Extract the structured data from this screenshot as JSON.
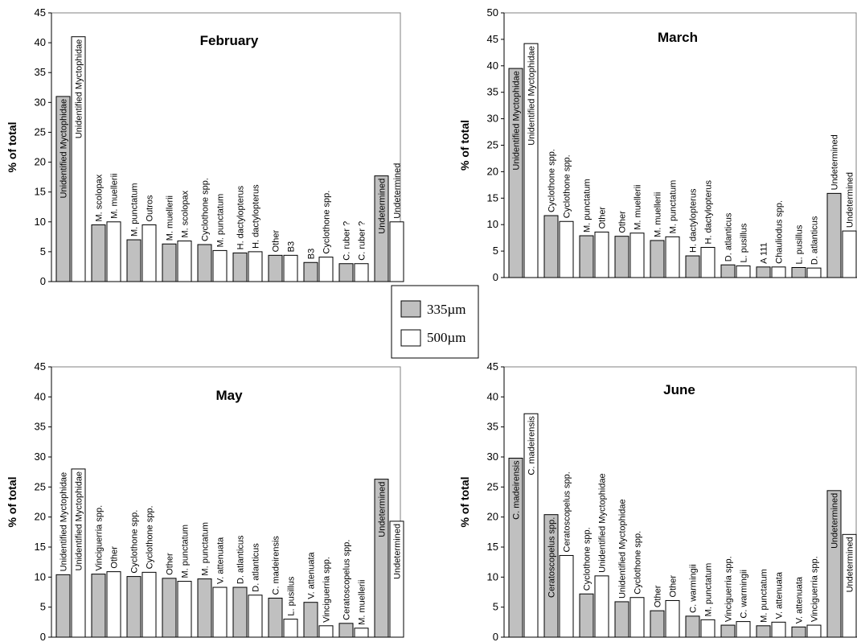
{
  "ylabel": "% of total",
  "legend": [
    {
      "name": "335µm",
      "color": "#c0c0c0"
    },
    {
      "name": "500µm",
      "color": "#ffffff"
    }
  ],
  "chart_data": [
    {
      "type": "bar",
      "title": "February",
      "ylabel": "% of total",
      "ylim": [
        0,
        45
      ],
      "yticks": [
        0,
        5,
        10,
        15,
        20,
        25,
        30,
        35,
        40,
        45
      ],
      "series": [
        {
          "name": "335µm",
          "color": "#c0c0c0",
          "labels": [
            "Unidentified Myctophidae",
            "M. scolopax",
            "M. punctatum",
            "M. muellerii",
            "Cyclothone spp.",
            "H. dactylopterus",
            "Other",
            "B3",
            "C. ruber ?",
            "Undetermined"
          ],
          "values": [
            31,
            9.5,
            7,
            6.3,
            6.2,
            4.8,
            4.4,
            3.2,
            3,
            17.7
          ]
        },
        {
          "name": "500µm",
          "color": "#ffffff",
          "labels": [
            "Unidentified Myctophidae",
            "M. muellerii",
            "Outros",
            "M. scolopax",
            "M. punctatum",
            "H. dactylopterus",
            "B3",
            "Cyclothone spp.",
            "C. ruber ?",
            "Undetermined"
          ],
          "values": [
            41,
            10,
            9.5,
            6.8,
            5.2,
            5,
            4.4,
            4.1,
            3,
            10
          ]
        }
      ]
    },
    {
      "type": "bar",
      "title": "March",
      "ylabel": "% of total",
      "ylim": [
        0,
        50
      ],
      "yticks": [
        0,
        5,
        10,
        15,
        20,
        25,
        30,
        35,
        40,
        45,
        50
      ],
      "series": [
        {
          "name": "335µm",
          "color": "#c0c0c0",
          "labels": [
            "Unidentified Myctophidae",
            "Cyclothone spp.",
            "M. punctatum",
            "Other",
            "M. muellerii",
            "H. dactylopterus",
            "D. atlanticus",
            "A 111",
            "L. pusillus",
            "Undetermined"
          ],
          "values": [
            39.5,
            11.7,
            7.9,
            7.8,
            7,
            4.1,
            2.4,
            2,
            1.9,
            15.9
          ]
        },
        {
          "name": "500µm",
          "color": "#ffffff",
          "labels": [
            "Unidentified Myctophidae",
            "Cyclothone spp.",
            "Other",
            "M. muellerii",
            "M. punctatum",
            "H. dactylopterus",
            "L. pusillus",
            "Chauliodus spp.",
            "D. atlanticus",
            "Undetermined"
          ],
          "values": [
            44.2,
            10.6,
            8.6,
            8.4,
            7.7,
            5.7,
            2.2,
            2,
            1.8,
            8.8
          ]
        }
      ]
    },
    {
      "type": "bar",
      "title": "May",
      "ylabel": "% of total",
      "ylim": [
        0,
        45
      ],
      "yticks": [
        0,
        5,
        10,
        15,
        20,
        25,
        30,
        35,
        40,
        45
      ],
      "series": [
        {
          "name": "335µm",
          "color": "#c0c0c0",
          "labels": [
            "Unidentified Myctophidae",
            "Vinciguerria spp.",
            "Cyclothone spp.",
            "Other",
            "M. punctatum",
            "D. atlanticus",
            "C. madeirensis",
            "V. attenuata",
            "Ceratoscopelus spp.",
            "Undetermined"
          ],
          "values": [
            10.4,
            10.5,
            10.1,
            9.8,
            9.7,
            8.3,
            6.5,
            5.8,
            2.3,
            26.3
          ]
        },
        {
          "name": "500µm",
          "color": "#ffffff",
          "labels": [
            "Unidentified Myctophidae",
            "Other",
            "Cyclothone spp.",
            "M. punctatum",
            "V. attenuata",
            "D. atlanticus",
            "L. pusillus",
            "Vinciguerria spp.",
            "M. muellerii",
            "Undetermined"
          ],
          "values": [
            28,
            10.9,
            10.8,
            9.3,
            8.3,
            7,
            3,
            1.9,
            1.5,
            19.3
          ]
        }
      ]
    },
    {
      "type": "bar",
      "title": "June",
      "ylabel": "% of total",
      "ylim": [
        0,
        45
      ],
      "yticks": [
        0,
        5,
        10,
        15,
        20,
        25,
        30,
        35,
        40,
        45
      ],
      "series": [
        {
          "name": "335µm",
          "color": "#c0c0c0",
          "labels": [
            "C. madeirensis",
            "Ceratoscopelus spp.",
            "Cyclothone spp.",
            "Unidentified Myctophidae",
            "Other",
            "C. warmingii",
            "Vinciguerria spp.",
            "M. punctatum",
            "V. attenuata",
            "Undetermined"
          ],
          "values": [
            29.8,
            20.4,
            7.2,
            5.9,
            4.4,
            3.5,
            2,
            1.9,
            1.7,
            24.4
          ]
        },
        {
          "name": "500µm",
          "color": "#ffffff",
          "labels": [
            "C. madeirensis",
            "Ceratoscopelus spp.",
            "Unidentified Myctophidae",
            "Cyclothone spp.",
            "Other",
            "M. punctatum",
            "C. warmingii",
            "V. attenuata",
            "Vinciguerria spp.",
            "Undetermined"
          ],
          "values": [
            37.2,
            13.6,
            10.2,
            6.6,
            6.1,
            2.9,
            2.6,
            2.5,
            2,
            17.1
          ]
        }
      ]
    }
  ]
}
